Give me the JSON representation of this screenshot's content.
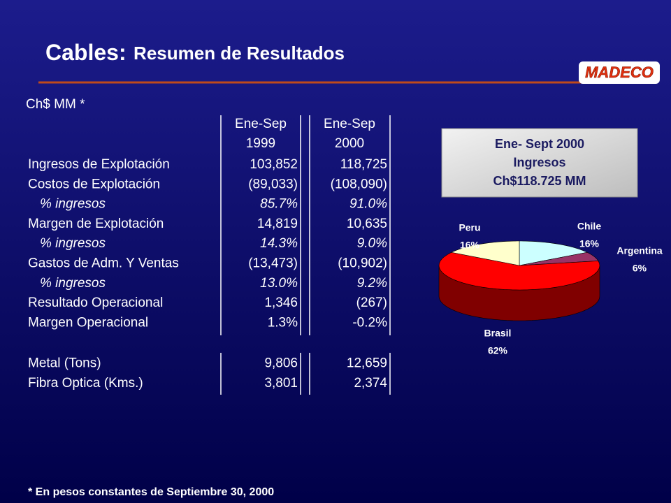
{
  "title": {
    "main": "Cables:",
    "rest": "Resumen de Resultados"
  },
  "logo": "MADECO",
  "unit_note": "Ch$ MM *",
  "table": {
    "columns": [
      [
        "Ene-Sep",
        "1999"
      ],
      [
        "Ene-Sep",
        "2000"
      ]
    ],
    "sections": [
      [
        {
          "label": "Ingresos de Explotación",
          "values": [
            "103,852",
            "118,725"
          ],
          "italic": false
        },
        {
          "label": "Costos de Explotación",
          "values": [
            "(89,033)",
            "(108,090)"
          ],
          "italic": false
        },
        {
          "label": "% ingresos",
          "values": [
            "85.7%",
            "91.0%"
          ],
          "italic": true
        },
        {
          "label": "Margen de Explotación",
          "values": [
            "14,819",
            "10,635"
          ],
          "italic": false
        },
        {
          "label": "% ingresos",
          "values": [
            "14.3%",
            "9.0%"
          ],
          "italic": true
        },
        {
          "label": "Gastos de Adm. Y Ventas",
          "values": [
            "(13,473)",
            "(10,902)"
          ],
          "italic": false
        },
        {
          "label": "% ingresos",
          "values": [
            "13.0%",
            "9.2%"
          ],
          "italic": true
        },
        {
          "label": "Resultado Operacional",
          "values": [
            "1,346",
            "(267)"
          ],
          "italic": false
        },
        {
          "label": "Margen Operacional",
          "values": [
            "1.3%",
            "-0.2%"
          ],
          "italic": false
        }
      ],
      [
        {
          "label": "Metal (Tons)",
          "values": [
            "9,806",
            "12,659"
          ],
          "italic": false
        },
        {
          "label": "Fibra Optica (Kms.)",
          "values": [
            "3,801",
            "2,374"
          ],
          "italic": false
        }
      ]
    ]
  },
  "footnote": "* En pesos constantes de Septiembre 30, 2000",
  "chart_data": {
    "type": "pie",
    "title_lines": [
      "Ene- Sept 2000",
      "Ingresos",
      "Ch$118.725 MM"
    ],
    "categories": [
      "Chile",
      "Argentina",
      "Brasil",
      "Peru"
    ],
    "values": [
      16,
      6,
      62,
      16
    ],
    "value_labels": [
      "16%",
      "6%",
      "62%",
      "16%"
    ],
    "colors": [
      "#ccffff",
      "#993366",
      "#ff0000",
      "#ffffcc"
    ],
    "side_colors": [
      "#669999",
      "#4d1a33",
      "#800000",
      "#99997a"
    ]
  }
}
